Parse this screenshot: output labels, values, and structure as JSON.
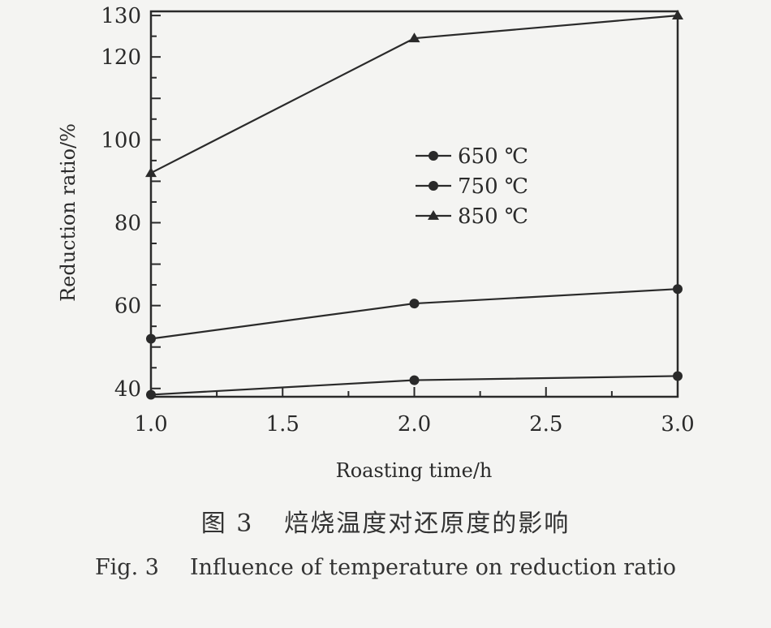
{
  "chart_data": {
    "type": "line",
    "xlabel": "Roasting time/h",
    "ylabel": "Reduction ratio/%",
    "xlim": [
      1.0,
      3.0
    ],
    "ylim": [
      38,
      131
    ],
    "x_ticks": [
      "1.0",
      "1.5",
      "2.0",
      "2.5",
      "3.0"
    ],
    "y_ticks": [
      "40",
      "60",
      "80",
      "100",
      "120",
      "130"
    ],
    "legend_position": "center",
    "series": [
      {
        "name": "650 ℃",
        "marker": "circle",
        "x": [
          1.0,
          2.0,
          3.0
        ],
        "y": [
          38.5,
          42,
          43
        ]
      },
      {
        "name": "750 ℃",
        "marker": "circle",
        "x": [
          1.0,
          2.0,
          3.0
        ],
        "y": [
          52,
          60.5,
          64
        ]
      },
      {
        "name": "850 ℃",
        "marker": "triangle",
        "x": [
          1.0,
          2.0,
          3.0
        ],
        "y": [
          92,
          124.5,
          130
        ]
      }
    ]
  },
  "caption": {
    "cn_number": "图 3",
    "cn_text": "焙烧温度对还原度的影响",
    "en_number": "Fig. 3",
    "en_text": "Influence of temperature on reduction ratio"
  },
  "colors": {
    "ink": "#2a2a2a",
    "background": "#f4f4f2"
  }
}
